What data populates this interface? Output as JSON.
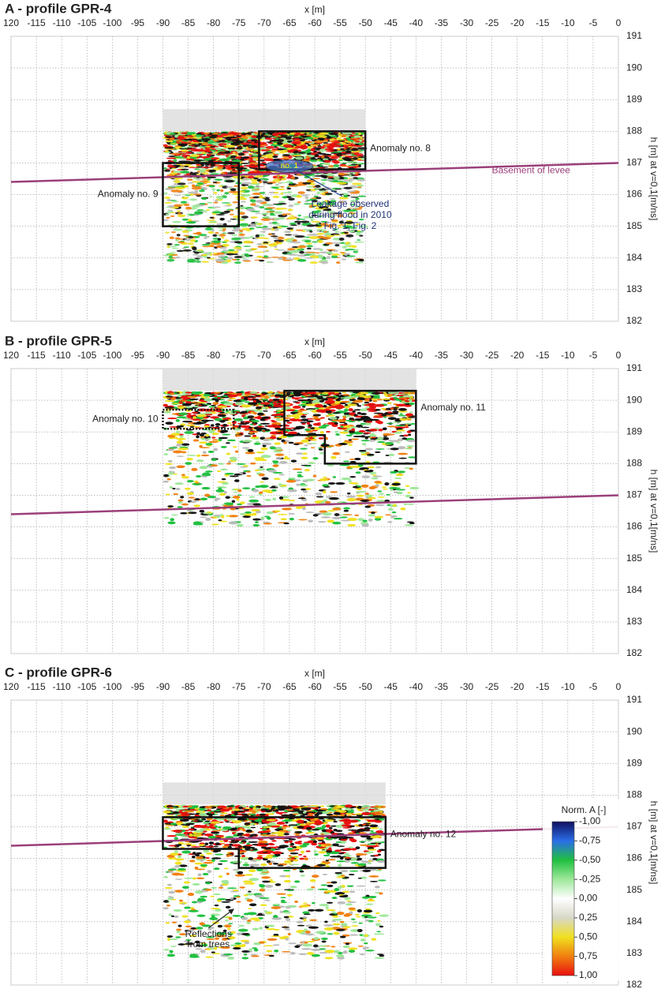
{
  "chart_data": [
    {
      "type": "radargram",
      "title": "A - profile GPR-4",
      "x_label": "x [m]",
      "y_label": "h [m] at v=0,1[m/ns]",
      "xlim": [
        -120,
        0
      ],
      "xticks": [
        {
          "value": -120,
          "label": "120"
        },
        -115,
        -110,
        -105,
        -100,
        -95,
        -90,
        -85,
        -80,
        -75,
        -70,
        -65,
        -60,
        -55,
        -50,
        -45,
        -40,
        -35,
        -30,
        -25,
        -20,
        -15,
        -10,
        -5,
        0
      ],
      "ylim": [
        182,
        191
      ],
      "yticks": [
        182,
        183,
        184,
        185,
        186,
        187,
        188,
        189,
        190,
        191
      ],
      "grid": true,
      "profile": {
        "x": [
          -90,
          -50
        ],
        "y": [
          183.8,
          188.7
        ]
      },
      "levee": {
        "label": "Basement of levee",
        "color": "#9b3f7a",
        "x": [
          -120,
          0
        ],
        "y": [
          186.4,
          187.0
        ]
      },
      "anomalies": [
        {
          "label": "Anomaly no. 9",
          "points": [
            [
              -90,
              187
            ],
            [
              -75,
              187
            ],
            [
              -75,
              185
            ],
            [
              -90,
              185
            ]
          ],
          "dashed": false
        },
        {
          "label": "Anomaly no. 8",
          "points": [
            [
              -71,
              188
            ],
            [
              -50,
              188
            ],
            [
              -50,
              186.8
            ],
            [
              -71,
              186.8
            ]
          ],
          "dashed": false
        }
      ],
      "leakage": {
        "label": "no. 1",
        "x": -65,
        "y": 186.9,
        "color": "#3f6fc4",
        "note": [
          "Leakage observed",
          "during flood in 2010",
          "Fig. 1, Fig. 2"
        ],
        "note_x": -53,
        "note_y": 185.7
      }
    },
    {
      "type": "radargram",
      "title": "B - profile GPR-5",
      "x_label": "x [m]",
      "y_label": "h [m] at v=0,1[m/ns]",
      "xlim": [
        -120,
        0
      ],
      "xticks": [
        {
          "value": -120,
          "label": "120"
        },
        -115,
        -110,
        -105,
        -100,
        -95,
        -90,
        -85,
        -80,
        -75,
        -70,
        -65,
        -60,
        -55,
        -50,
        -45,
        -40,
        -35,
        -30,
        -25,
        -20,
        -15,
        -10,
        -5,
        0
      ],
      "ylim": [
        182,
        191
      ],
      "yticks": [
        182,
        183,
        184,
        185,
        186,
        187,
        188,
        189,
        190,
        191
      ],
      "grid": true,
      "profile": {
        "x": [
          -90,
          -40
        ],
        "y": [
          186,
          191
        ]
      },
      "levee": {
        "color": "#9b3f7a",
        "x": [
          -120,
          0
        ],
        "y": [
          186.4,
          187.0
        ]
      },
      "anomalies": [
        {
          "label": "Anomaly no. 10",
          "points": [
            [
              -90,
              189.7
            ],
            [
              -76,
              189.7
            ],
            [
              -76,
              189.1
            ],
            [
              -90,
              189.1
            ]
          ],
          "dashed": true
        },
        {
          "label": "Anomaly no. 11",
          "points": [
            [
              -66,
              190.3
            ],
            [
              -40,
              190.3
            ],
            [
              -40,
              188
            ],
            [
              -58,
              188
            ],
            [
              -58,
              188.9
            ],
            [
              -66,
              188.9
            ]
          ],
          "dashed": false
        }
      ]
    },
    {
      "type": "radargram",
      "title": "C - profile GPR-6",
      "x_label": "x [m]",
      "y_label": "h [m] at v=0,1[m/ns]",
      "xlim": [
        -120,
        0
      ],
      "xticks": [
        {
          "value": -120,
          "label": "120"
        },
        -115,
        -110,
        -105,
        -100,
        -95,
        -90,
        -85,
        -80,
        -75,
        -70,
        -65,
        -60,
        -55,
        -50,
        -45,
        -40,
        -35,
        -30,
        -25,
        -20,
        -15,
        -10,
        -5,
        0
      ],
      "ylim": [
        182,
        191
      ],
      "yticks": [
        182,
        183,
        184,
        185,
        186,
        187,
        188,
        189,
        190,
        191
      ],
      "grid": true,
      "profile": {
        "x": [
          -90,
          -46
        ],
        "y": [
          182.8,
          188.4
        ]
      },
      "levee": {
        "color": "#9b3f7a",
        "x": [
          -120,
          0
        ],
        "y": [
          186.4,
          187.0
        ]
      },
      "anomalies": [
        {
          "label": "Anomaly no. 12",
          "points": [
            [
              -90,
              187.3
            ],
            [
              -46,
              187.3
            ],
            [
              -46,
              185.7
            ],
            [
              -75,
              185.7
            ],
            [
              -75,
              186.3
            ],
            [
              -90,
              186.3
            ]
          ],
          "dashed": false
        }
      ],
      "trees": {
        "label": [
          "Reflections",
          "from trees"
        ],
        "x": -81,
        "y": 183.6,
        "to_x": -76,
        "to_y": 184.4
      },
      "colorbar": {
        "title": "Norm. A [-]",
        "ticks": [
          {
            "value": -1,
            "label": "-1,00"
          },
          {
            "value": -0.75,
            "label": "-0,75"
          },
          {
            "value": -0.5,
            "label": "-0,50"
          },
          {
            "value": -0.25,
            "label": "-0,25"
          },
          {
            "value": 0,
            "label": "0,00"
          },
          {
            "value": 0.25,
            "label": "0,25"
          },
          {
            "value": 0.5,
            "label": "0,50"
          },
          {
            "value": 0.75,
            "label": "0,75"
          },
          {
            "value": 1,
            "label": "1,00"
          }
        ],
        "colors": [
          "#101060",
          "#2a6ee8",
          "#20c040",
          "#9ee89a",
          "#ffffff",
          "#d8d8c8",
          "#f0e020",
          "#f08010",
          "#e81010"
        ]
      }
    }
  ]
}
